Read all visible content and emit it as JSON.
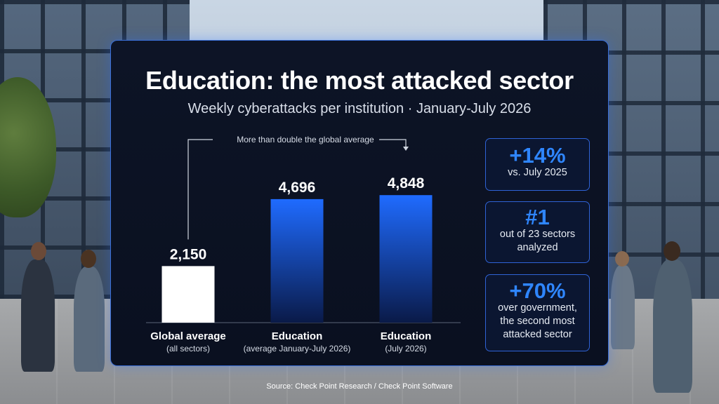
{
  "header": {
    "title": "Education: the most attacked sector",
    "subtitle": "Weekly cyberattacks per institution · January-July 2026"
  },
  "chart_data": {
    "type": "bar",
    "title": "Education: the most attacked sector",
    "subtitle": "Weekly cyberattacks per institution · January-July 2026",
    "categories": [
      {
        "label": "Global average",
        "sublabel": "(all sectors)"
      },
      {
        "label": "Education",
        "sublabel": "(average January-July 2026)"
      },
      {
        "label": "Education",
        "sublabel": "(July 2026)"
      }
    ],
    "values": [
      2150,
      4696,
      4848
    ],
    "value_labels": [
      "2,150",
      "4,696",
      "4,848"
    ],
    "ylim": [
      0,
      5200
    ],
    "grid": false,
    "annotation": "More than double the global average",
    "colors": {
      "global": "#ffffff",
      "education_top": "#1f6bff",
      "education_bottom": "#0a1a48",
      "bracket": "#d0d6e0"
    }
  },
  "stats": [
    {
      "big": "+14%",
      "lines": [
        "vs. July 2025"
      ]
    },
    {
      "big": "#1",
      "lines": [
        "out of 23 sectors",
        "analyzed"
      ]
    },
    {
      "big": "+70%",
      "lines": [
        "over government,",
        "the second most",
        "attacked sector"
      ]
    }
  ],
  "footer": {
    "source": "Source: Check Point Research / Check Point Software"
  },
  "theme": {
    "panel_border": "#3a6fd8",
    "accent": "#2f86ff"
  }
}
